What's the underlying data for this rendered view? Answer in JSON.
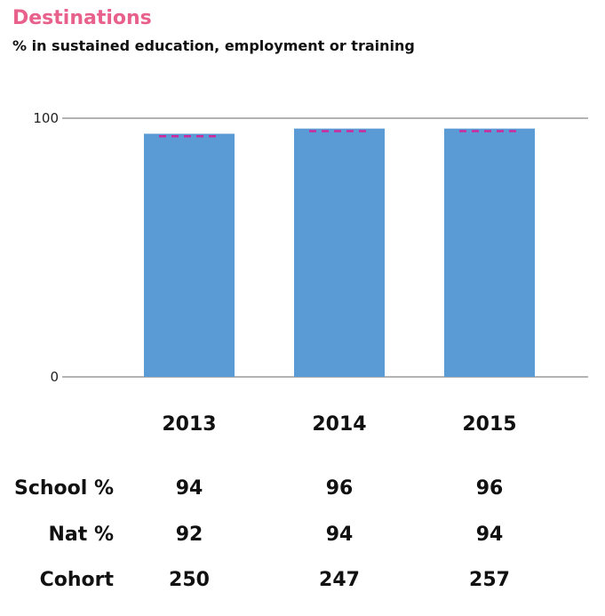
{
  "title": "Destinations",
  "subtitle": "% in sustained education, employment or training",
  "colors": {
    "title": "#e8618c",
    "bar": "#5b9bd5",
    "benchmark": "#cc2a9c",
    "axis": "#888888"
  },
  "chart_data": {
    "type": "bar",
    "title": "Destinations",
    "subtitle": "% in sustained education, employment or training",
    "categories": [
      "2013",
      "2014",
      "2015"
    ],
    "series": [
      {
        "name": "School %",
        "values": [
          94,
          96,
          96
        ]
      },
      {
        "name": "Nat %",
        "values": [
          92,
          94,
          94
        ]
      }
    ],
    "ylim": [
      0,
      100
    ],
    "yticks": [
      "0",
      "100"
    ],
    "grid": true,
    "legend": "none"
  },
  "table": {
    "rows": [
      {
        "label": "School %",
        "values": [
          "94",
          "96",
          "96"
        ]
      },
      {
        "label": "Nat %",
        "values": [
          "92",
          "94",
          "94"
        ]
      },
      {
        "label": "Cohort",
        "values": [
          "250",
          "247",
          "257"
        ]
      }
    ]
  }
}
